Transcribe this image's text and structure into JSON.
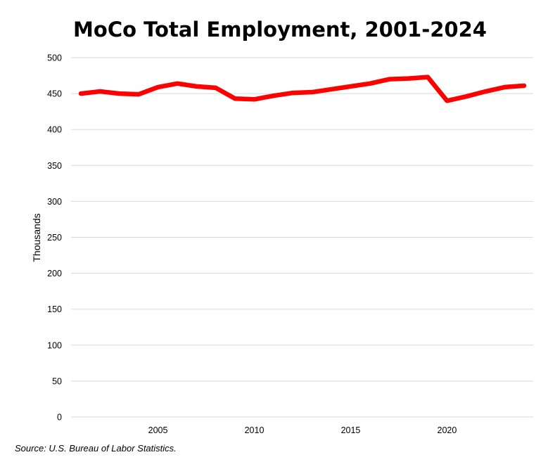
{
  "colors": {
    "line": "#ff0000",
    "grid": "#d9d9d9",
    "text": "#000000",
    "background": "#ffffff"
  },
  "chart_data": {
    "type": "line",
    "title": "MoCo Total Employment, 2001-2024",
    "xlabel": "",
    "ylabel": "Thousands",
    "x": [
      2001,
      2002,
      2003,
      2004,
      2005,
      2006,
      2007,
      2008,
      2009,
      2010,
      2011,
      2012,
      2013,
      2014,
      2015,
      2016,
      2017,
      2018,
      2019,
      2020,
      2021,
      2022,
      2023,
      2024
    ],
    "series": [
      {
        "name": "Total Employment",
        "values": [
          450,
          453,
          450,
          449,
          459,
          464,
          460,
          458,
          443,
          442,
          447,
          451,
          452,
          456,
          460,
          464,
          470,
          471,
          473,
          440,
          446,
          453,
          459,
          461
        ]
      }
    ],
    "ylim": [
      0,
      500
    ],
    "yticks": [
      0,
      50,
      100,
      150,
      200,
      250,
      300,
      350,
      400,
      450,
      500
    ],
    "xticks": [
      2005,
      2010,
      2015,
      2020
    ],
    "grid": true,
    "legend": "none"
  },
  "source": "Source: U.S. Bureau of Labor Statistics."
}
